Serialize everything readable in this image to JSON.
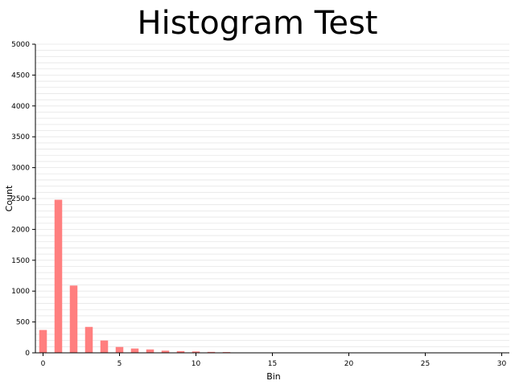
{
  "chart_data": {
    "type": "bar",
    "title": "Histogram Test",
    "xlabel": "Bin",
    "ylabel": "Count",
    "xlim": [
      -0.5,
      30.5
    ],
    "ylim": [
      0,
      5000
    ],
    "xticks": [
      0,
      5,
      10,
      15,
      20,
      25,
      30
    ],
    "yticks": [
      0,
      500,
      1000,
      1500,
      2000,
      2500,
      3000,
      3500,
      4000,
      4500,
      5000
    ],
    "grid": true,
    "grid_axis": "y",
    "grid_minor_step": 100,
    "bar_color": "#ff7f7f",
    "x": [
      0,
      1,
      2,
      3,
      4,
      5,
      6,
      7,
      8,
      9,
      10,
      11,
      12
    ],
    "values": [
      370,
      2480,
      1090,
      420,
      200,
      95,
      70,
      55,
      35,
      28,
      22,
      15,
      12
    ]
  }
}
